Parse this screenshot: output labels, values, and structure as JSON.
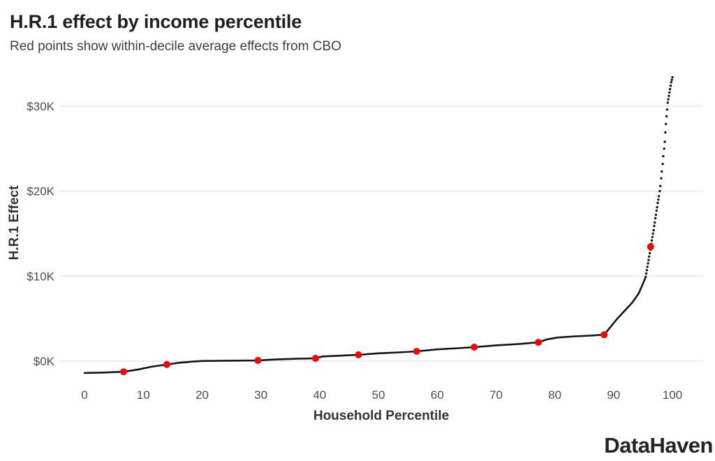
{
  "header": {
    "title": "H.R.1 effect by income percentile",
    "subtitle": "Red points show within-decile average effects from CBO"
  },
  "branding": {
    "logo_text": "DataHaven"
  },
  "chart_data": {
    "type": "line",
    "title": "H.R.1 effect by income percentile",
    "subtitle": "Red points show within-decile average effects from CBO",
    "xlabel": "Household Percentile",
    "ylabel": "H.R.1 Effect",
    "xlim": [
      0,
      100
    ],
    "ylim_thousands": [
      -2.5,
      34
    ],
    "grid": "horizontal-only",
    "legend": "none",
    "x_ticks": [
      0,
      10,
      20,
      30,
      40,
      50,
      60,
      70,
      80,
      90,
      100
    ],
    "y_ticks": [
      {
        "value_k": 0,
        "label": "$0K"
      },
      {
        "value_k": 10,
        "label": "$10K"
      },
      {
        "value_k": 20,
        "label": "$20K"
      },
      {
        "value_k": 30,
        "label": "$30K"
      }
    ],
    "colors": {
      "line": "#131313",
      "tail_dots": "#131313",
      "decile_points": "#ff0000",
      "grid": "#e7e7e7"
    },
    "series": [
      {
        "name": "percentile_line",
        "type": "line",
        "color": "#131313",
        "description": "Household-level H.R.1 effect by income percentile (solid line, values in $K)",
        "points": [
          [
            0,
            -1.4
          ],
          [
            3,
            -1.35
          ],
          [
            6.65,
            -1.25
          ],
          [
            9,
            -1.0
          ],
          [
            11.5,
            -0.65
          ],
          [
            14,
            -0.4
          ],
          [
            16,
            -0.2
          ],
          [
            18,
            -0.07
          ],
          [
            20,
            0.02
          ],
          [
            24,
            0.05
          ],
          [
            29.5,
            0.08
          ],
          [
            32,
            0.18
          ],
          [
            36,
            0.28
          ],
          [
            39.3,
            0.33
          ],
          [
            40.5,
            0.55
          ],
          [
            43.5,
            0.64
          ],
          [
            46.6,
            0.74
          ],
          [
            50,
            0.92
          ],
          [
            53.5,
            1.03
          ],
          [
            56.5,
            1.15
          ],
          [
            60,
            1.38
          ],
          [
            63.5,
            1.52
          ],
          [
            66.3,
            1.64
          ],
          [
            70,
            1.86
          ],
          [
            74,
            2.02
          ],
          [
            77.2,
            2.21
          ],
          [
            78.6,
            2.55
          ],
          [
            80.5,
            2.78
          ],
          [
            83.5,
            2.92
          ],
          [
            86,
            3.0
          ],
          [
            88.4,
            3.11
          ],
          [
            90.5,
            4.9
          ],
          [
            93.2,
            6.9
          ],
          [
            94.3,
            8.0
          ],
          [
            95.35,
            9.7
          ]
        ]
      },
      {
        "name": "top_percentile_dots",
        "type": "scatter",
        "color": "#131313",
        "marker_radius": 1.7,
        "description": "Top-of-distribution percentile points shown as separated dots (values in $K)",
        "points": [
          [
            95.45,
            9.9
          ],
          [
            95.55,
            10.3
          ],
          [
            95.65,
            10.7
          ],
          [
            95.75,
            11.1
          ],
          [
            95.85,
            11.5
          ],
          [
            95.95,
            11.9
          ],
          [
            96.05,
            12.3
          ],
          [
            96.15,
            12.7
          ],
          [
            96.25,
            13.1
          ],
          [
            96.4,
            13.8
          ],
          [
            96.5,
            14.2
          ],
          [
            96.6,
            14.6
          ],
          [
            96.7,
            15.0
          ],
          [
            96.8,
            15.4
          ],
          [
            96.9,
            15.9
          ],
          [
            97.0,
            16.3
          ],
          [
            97.1,
            16.8
          ],
          [
            97.2,
            17.2
          ],
          [
            97.3,
            17.7
          ],
          [
            97.4,
            18.1
          ],
          [
            97.5,
            18.6
          ],
          [
            97.6,
            19.0
          ],
          [
            97.7,
            19.4
          ],
          [
            97.85,
            20.0
          ],
          [
            97.95,
            20.6
          ],
          [
            98.1,
            21.5
          ],
          [
            98.2,
            22.3
          ],
          [
            98.35,
            23.2
          ],
          [
            98.45,
            24.1
          ],
          [
            98.6,
            25.0
          ],
          [
            98.7,
            25.8
          ],
          [
            98.8,
            26.9
          ],
          [
            98.9,
            27.9
          ],
          [
            99.0,
            28.8
          ],
          [
            99.1,
            29.6
          ],
          [
            99.2,
            30.4
          ],
          [
            99.3,
            30.8
          ],
          [
            99.4,
            31.2
          ],
          [
            99.5,
            31.6
          ],
          [
            99.6,
            32.0
          ],
          [
            99.7,
            32.4
          ],
          [
            99.8,
            32.8
          ],
          [
            99.9,
            33.1
          ],
          [
            100,
            33.4
          ]
        ]
      },
      {
        "name": "decile_averages",
        "type": "scatter",
        "color": "#ff0000",
        "marker_radius": 5,
        "description": "Within-decile average effects from CBO (red points, values in $K)",
        "points": [
          [
            6.65,
            -1.25
          ],
          [
            14.0,
            -0.4
          ],
          [
            29.5,
            0.08
          ],
          [
            39.3,
            0.33
          ],
          [
            46.6,
            0.74
          ],
          [
            56.5,
            1.15
          ],
          [
            66.3,
            1.64
          ],
          [
            77.2,
            2.21
          ],
          [
            88.4,
            3.11
          ],
          [
            96.3,
            13.45
          ]
        ]
      }
    ]
  }
}
